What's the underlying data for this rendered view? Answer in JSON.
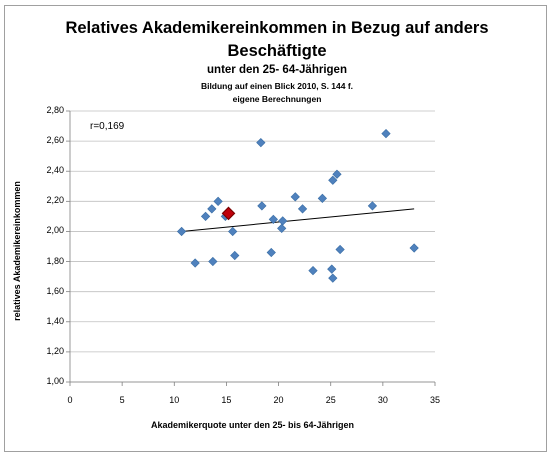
{
  "chart_data": {
    "type": "scatter",
    "title": "Relatives Akademikereinkommen in Bezug auf anders",
    "title_line2": "Beschäftigte",
    "subtitle": "unter den 25- 64-Jährigen",
    "source_line1": "Bildung auf einen Blick 2010, S. 144 f.",
    "source_line2": "eigene Berechnungen",
    "xlabel": "Akademikerquote unter den 25- bis 64-Jährigen",
    "ylabel": "relatives Akademikereinkommen",
    "annotation": "r=0,169",
    "xlim": [
      0,
      35
    ],
    "ylim": [
      1.0,
      2.8
    ],
    "x_ticks": [
      "0",
      "5",
      "10",
      "15",
      "20",
      "25",
      "30",
      "35"
    ],
    "y_ticks": [
      "1,00",
      "1,20",
      "1,40",
      "1,60",
      "1,80",
      "2,00",
      "2,20",
      "2,40",
      "2,60",
      "2,80"
    ],
    "grid": "horizontal",
    "series": [
      {
        "points": [
          [
            10.7,
            2.0
          ],
          [
            12.0,
            1.79
          ],
          [
            13.0,
            2.1
          ],
          [
            13.6,
            2.15
          ],
          [
            13.7,
            1.8
          ],
          [
            14.2,
            2.2
          ],
          [
            14.9,
            2.1
          ],
          [
            15.6,
            2.0
          ],
          [
            15.8,
            1.84
          ],
          [
            18.3,
            2.59
          ],
          [
            18.4,
            2.17
          ],
          [
            19.3,
            1.86
          ],
          [
            19.5,
            2.08
          ],
          [
            20.3,
            2.02
          ],
          [
            20.4,
            2.07
          ],
          [
            21.6,
            2.23
          ],
          [
            22.3,
            2.15
          ],
          [
            23.3,
            1.74
          ],
          [
            24.2,
            2.22
          ],
          [
            25.1,
            1.75
          ],
          [
            25.2,
            1.69
          ],
          [
            25.2,
            2.34
          ],
          [
            25.6,
            2.38
          ],
          [
            25.9,
            1.88
          ],
          [
            29.0,
            2.17
          ],
          [
            30.3,
            2.65
          ],
          [
            33.0,
            1.89
          ]
        ],
        "color": "#4f81bd"
      },
      {
        "points": [
          [
            15.2,
            2.12
          ]
        ],
        "color": "#c0000b",
        "border": "#7a0000"
      }
    ],
    "trendline": {
      "start": [
        10.7,
        2.0
      ],
      "end": [
        33.0,
        2.15
      ],
      "color": "#000000"
    }
  }
}
